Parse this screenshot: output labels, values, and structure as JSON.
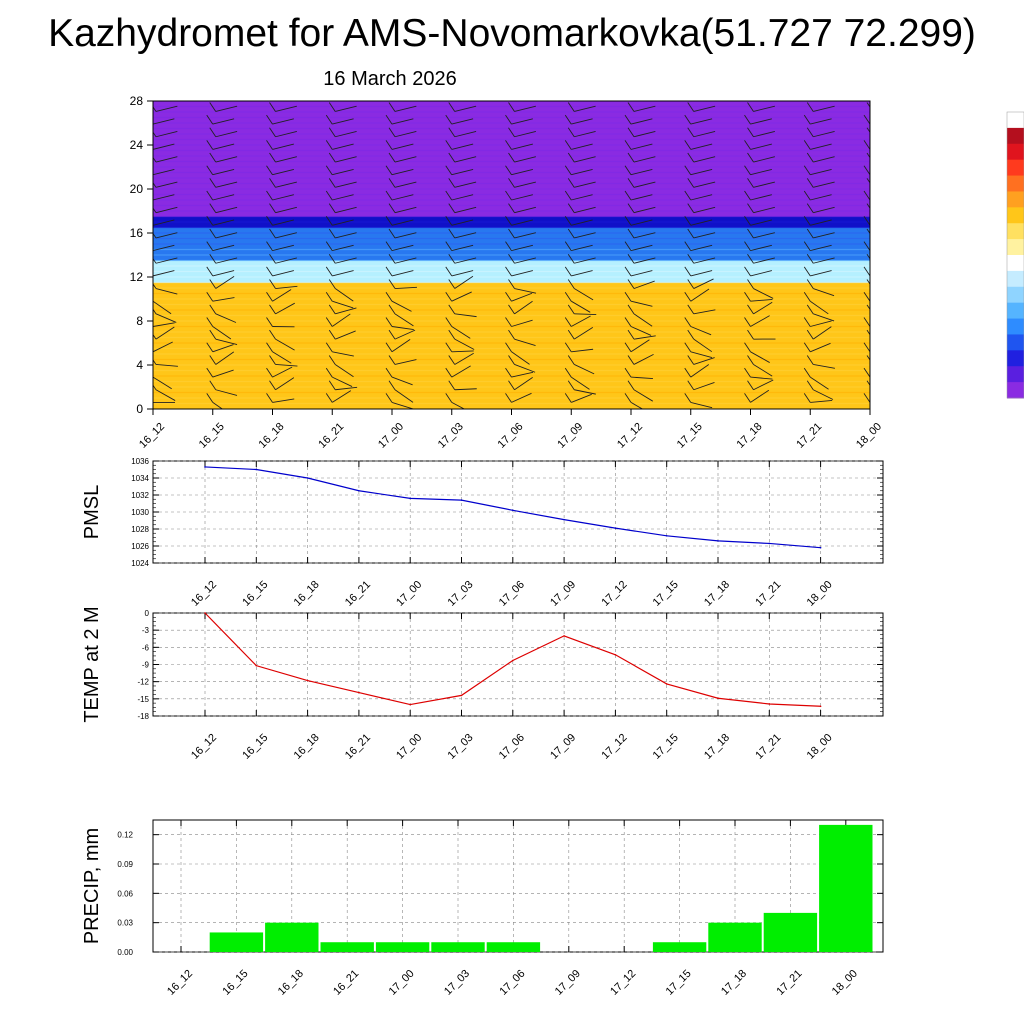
{
  "page": {
    "title": "Kazhydromet for AMS-Novomarkovka(51.727 72.299)",
    "subtitle": "16 March 2026"
  },
  "time_labels": [
    "16_12",
    "16_15",
    "16_18",
    "16_21",
    "17_00",
    "17_03",
    "17_06",
    "17_09",
    "17_12",
    "17_15",
    "17_18",
    "17_21",
    "18_00"
  ],
  "chart_data": [
    {
      "type": "heatmap",
      "name": "cross-section",
      "title": "",
      "x": [
        "16_12",
        "16_15",
        "16_18",
        "16_21",
        "17_00",
        "17_03",
        "17_06",
        "17_09",
        "17_12",
        "17_15",
        "17_18",
        "17_21",
        "18_00"
      ],
      "yticks": [
        0,
        4,
        8,
        12,
        16,
        20,
        24,
        28
      ],
      "ylim": [
        0,
        28
      ],
      "bands": [
        {
          "from": 0,
          "to": 11.5,
          "color": "#ffc619"
        },
        {
          "from": 11.5,
          "to": 13.5,
          "color": "#b5f0ff"
        },
        {
          "from": 13.5,
          "to": 16.5,
          "color": "#2878f0"
        },
        {
          "from": 16.5,
          "to": 17.5,
          "color": "#1010c8"
        },
        {
          "from": 17.5,
          "to": 28,
          "color": "#8a2be2"
        }
      ],
      "colorbar": [
        "#8a2be2",
        "#5a1fe0",
        "#2020e0",
        "#1f55f0",
        "#2e8cff",
        "#55b4ff",
        "#8fd4ff",
        "#c5ecff",
        "#ffffff",
        "#fff2a0",
        "#ffe060",
        "#ffc619",
        "#ffa020",
        "#ff7020",
        "#ff3a1e",
        "#e0141e",
        "#b40f1e",
        "#ffffff"
      ]
    },
    {
      "type": "line",
      "name": "pmsl",
      "ylabel": "PMSL",
      "x": [
        "16_12",
        "16_15",
        "16_18",
        "16_21",
        "17_00",
        "17_03",
        "17_06",
        "17_09",
        "17_12",
        "17_15",
        "17_18",
        "17_21",
        "18_00"
      ],
      "values": [
        1035.3,
        1035.0,
        1034.0,
        1032.5,
        1031.6,
        1031.4,
        1030.2,
        1029.1,
        1028.1,
        1027.2,
        1026.6,
        1026.3,
        1025.8
      ],
      "ylim": [
        1024,
        1036
      ],
      "yticks": [
        1024,
        1026,
        1028,
        1030,
        1032,
        1034,
        1036
      ],
      "color": "#0000cc"
    },
    {
      "type": "line",
      "name": "temp",
      "ylabel": "TEMP at 2 M",
      "x": [
        "16_12",
        "16_15",
        "16_18",
        "16_21",
        "17_00",
        "17_03",
        "17_06",
        "17_09",
        "17_12",
        "17_15",
        "17_18",
        "17_21",
        "18_00"
      ],
      "values": [
        0,
        -9.2,
        -11.8,
        -13.9,
        -16.0,
        -14.4,
        -8.3,
        -4.0,
        -7.3,
        -12.4,
        -14.9,
        -15.9,
        -16.3
      ],
      "ylim": [
        -18,
        0
      ],
      "yticks": [
        -18,
        -15,
        -12,
        -9,
        -6,
        -3,
        0
      ],
      "color": "#dd0000"
    },
    {
      "type": "bar",
      "name": "precip",
      "ylabel": "PRECIP, mm",
      "categories": [
        "16_12",
        "16_15",
        "16_18",
        "16_21",
        "17_00",
        "17_03",
        "17_06",
        "17_09",
        "17_12",
        "17_15",
        "17_18",
        "17_21",
        "18_00"
      ],
      "values": [
        0,
        0.02,
        0.03,
        0.01,
        0.01,
        0.01,
        0.01,
        0,
        0,
        0.01,
        0.03,
        0.04,
        0.13
      ],
      "ylim": [
        0,
        0.135
      ],
      "yticks": [
        "0.00",
        "0.03",
        "0.06",
        "0.09",
        "0.12"
      ],
      "color": "#00ee00"
    }
  ]
}
